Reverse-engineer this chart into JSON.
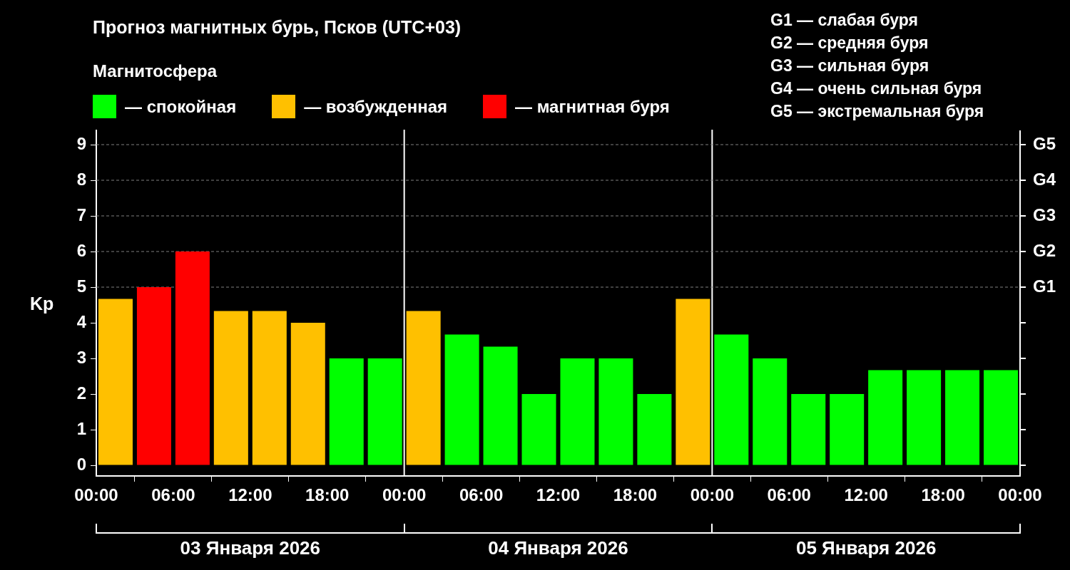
{
  "chart_data": {
    "type": "bar",
    "title": "Прогноз магнитных бурь, Псков (UTC+03)",
    "legend_title": "Магнитосфера",
    "legend": "top left",
    "ylabel": "Kp",
    "x": [
      "2026-01-03T01:30",
      "2026-01-03T04:30",
      "2026-01-03T07:30",
      "2026-01-03T10:30",
      "2026-01-03T13:30",
      "2026-01-03T16:30",
      "2026-01-03T19:30",
      "2026-01-03T22:30",
      "2026-01-04T01:30",
      "2026-01-04T04:30",
      "2026-01-04T07:30",
      "2026-01-04T10:30",
      "2026-01-04T13:30",
      "2026-01-04T16:30",
      "2026-01-04T19:30",
      "2026-01-04T22:30",
      "2026-01-05T01:30",
      "2026-01-05T04:30",
      "2026-01-05T07:30",
      "2026-01-05T10:30",
      "2026-01-05T13:30",
      "2026-01-05T16:30",
      "2026-01-05T19:30",
      "2026-01-05T22:30"
    ],
    "xlim": [
      "2026-01-03T00:00",
      "2026-01-06T00:00"
    ],
    "xticks": [
      {
        "value": "2026-01-03T00:00",
        "label": "00:00"
      },
      {
        "value": "2026-01-03T06:00",
        "label": "06:00"
      },
      {
        "value": "2026-01-03T12:00",
        "label": "12:00"
      },
      {
        "value": "2026-01-03T18:00",
        "label": "18:00"
      },
      {
        "value": "2026-01-04T00:00",
        "label": "00:00"
      },
      {
        "value": "2026-01-04T06:00",
        "label": "06:00"
      },
      {
        "value": "2026-01-04T12:00",
        "label": "12:00"
      },
      {
        "value": "2026-01-04T18:00",
        "label": "18:00"
      },
      {
        "value": "2026-01-05T00:00",
        "label": "00:00"
      },
      {
        "value": "2026-01-05T06:00",
        "label": "06:00"
      },
      {
        "value": "2026-01-05T12:00",
        "label": "12:00"
      },
      {
        "value": "2026-01-05T18:00",
        "label": "18:00"
      },
      {
        "value": "2026-01-06T00:00",
        "label": "00:00"
      }
    ],
    "ylim": [
      -0.3,
      9.4
    ],
    "yticks": [
      0,
      1,
      2,
      3,
      4,
      5,
      6,
      7,
      8,
      9
    ],
    "series": [
      {
        "name": "— спокойная",
        "color": "#00ff00",
        "values": [
          null,
          null,
          null,
          null,
          null,
          null,
          3,
          3,
          null,
          3.67,
          3.33,
          2,
          3,
          3,
          2,
          null,
          3.67,
          3,
          2,
          2,
          2.67,
          2.67,
          2.67,
          2.67
        ]
      },
      {
        "name": "— возбужденная",
        "color": "#ffc000",
        "values": [
          4.67,
          null,
          null,
          4.33,
          4.33,
          4,
          null,
          null,
          4.33,
          null,
          null,
          null,
          null,
          null,
          null,
          4.67,
          null,
          null,
          null,
          null,
          null,
          null,
          null,
          null
        ]
      },
      {
        "name": "— магнитная буря",
        "color": "#ff0000",
        "values": [
          null,
          5,
          6,
          null,
          null,
          null,
          null,
          null,
          null,
          null,
          null,
          null,
          null,
          null,
          null,
          null,
          null,
          null,
          null,
          null,
          null,
          null,
          null,
          null
        ]
      }
    ],
    "ref_lines": [
      {
        "axis": "x",
        "value": "2026-01-04T00:00",
        "color": "#ffffff",
        "line_style": "solid"
      },
      {
        "axis": "x",
        "value": "2026-01-05T00:00",
        "color": "#ffffff",
        "line_style": "solid"
      },
      {
        "axis": "y",
        "value": 5,
        "label": "G1",
        "color": "#808080",
        "line_style": "dashed"
      },
      {
        "axis": "y",
        "value": 6,
        "label": "G2",
        "color": "#808080",
        "line_style": "dashed"
      },
      {
        "axis": "y",
        "value": 7,
        "label": "G3",
        "color": "#808080",
        "line_style": "dashed"
      },
      {
        "axis": "y",
        "value": 8,
        "label": "G4",
        "color": "#808080",
        "line_style": "dashed"
      },
      {
        "axis": "y",
        "value": 9,
        "label": "G5",
        "color": "#808080",
        "line_style": "dashed"
      }
    ],
    "annotations": [
      "G1 — слабая буря",
      "G2 — средняя буря",
      "G3 — сильная буря",
      "G4 — очень сильная буря",
      "G5 — экстремальная буря",
      "03 Января 2026",
      "04 Января 2026",
      "05 Января 2026"
    ]
  }
}
